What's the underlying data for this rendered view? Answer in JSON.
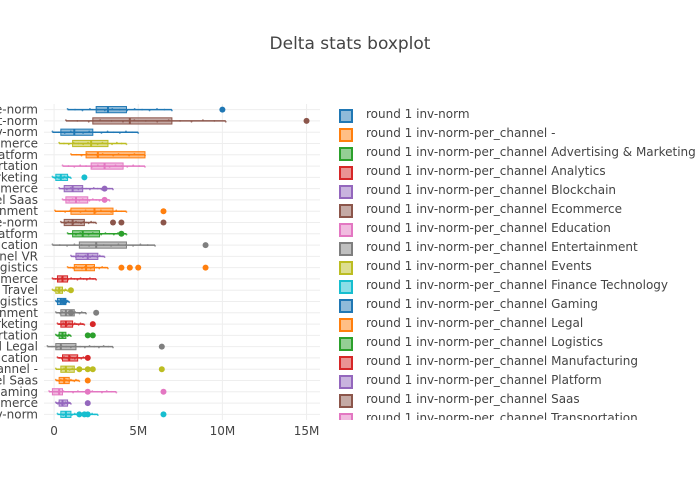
{
  "chart_data": {
    "type": "box",
    "orientation": "horizontal",
    "title": "Delta stats boxplot",
    "xlabel": "",
    "ylabel": "",
    "xlim": [
      -600000,
      15800000
    ],
    "xticks": [
      0,
      5000000,
      10000000,
      15000000
    ],
    "xtick_labels": [
      "0",
      "5M",
      "10M",
      "15M"
    ],
    "grid": true,
    "legend_position": "right",
    "categories": [
      "e-norm",
      "t-norm",
      "v-norm",
      "mmerce",
      "latform",
      "portation",
      "arketing",
      "mmerce",
      "el Saas",
      "inment",
      "e-norm",
      "latform",
      "ducation",
      "nnel VR",
      "ogistics",
      "mmerce",
      "l Travel",
      "ogistics",
      "inment",
      "arketing",
      "portation",
      "el Legal",
      "ducation",
      "hannel -",
      "el Saas",
      "Gaming",
      "mmerce",
      "v-norm"
    ],
    "series": [
      {
        "name": "round 1 inv-norm",
        "color": "#1f77b4"
      },
      {
        "name": "round 1 inv-norm-per_channel -",
        "color": "#ff7f0e"
      },
      {
        "name": "round 1 inv-norm-per_channel Advertising & Marketing",
        "color": "#2ca02c"
      },
      {
        "name": "round 1 inv-norm-per_channel Analytics",
        "color": "#d62728"
      },
      {
        "name": "round 1 inv-norm-per_channel Blockchain",
        "color": "#9467bd"
      },
      {
        "name": "round 1 inv-norm-per_channel Ecommerce",
        "color": "#8c564b"
      },
      {
        "name": "round 1 inv-norm-per_channel Education",
        "color": "#e377c2"
      },
      {
        "name": "round 1 inv-norm-per_channel Entertainment",
        "color": "#7f7f7f"
      },
      {
        "name": "round 1 inv-norm-per_channel Events",
        "color": "#bcbd22"
      },
      {
        "name": "round 1 inv-norm-per_channel Finance Technology",
        "color": "#17becf"
      },
      {
        "name": "round 1 inv-norm-per_channel Gaming",
        "color": "#1f77b4"
      },
      {
        "name": "round 1 inv-norm-per_channel Legal",
        "color": "#ff7f0e"
      },
      {
        "name": "round 1 inv-norm-per_channel Logistics",
        "color": "#2ca02c"
      },
      {
        "name": "round 1 inv-norm-per_channel Manufacturing",
        "color": "#d62728"
      },
      {
        "name": "round 1 inv-norm-per_channel Platform",
        "color": "#9467bd"
      },
      {
        "name": "round 1 inv-norm-per_channel Saas",
        "color": "#8c564b"
      },
      {
        "name": "round 1 inv-norm-per_channel Transportation",
        "color": "#e377c2"
      }
    ],
    "rows": [
      {
        "label": "e-norm",
        "color": "#1f77b4",
        "min": 800000,
        "q1": 2500000,
        "median": 3200000,
        "q3": 4300000,
        "max": 7000000,
        "outliers": [
          10000000
        ]
      },
      {
        "label": "t-norm",
        "color": "#8c564b",
        "min": 700000,
        "q1": 2300000,
        "median": 4500000,
        "q3": 7000000,
        "max": 10200000,
        "outliers": [
          15000000
        ]
      },
      {
        "label": "v-norm",
        "color": "#1f77b4",
        "min": -100000,
        "q1": 400000,
        "median": 1200000,
        "q3": 2300000,
        "max": 5000000,
        "outliers": []
      },
      {
        "label": "mmerce",
        "color": "#bcbd22",
        "min": 300000,
        "q1": 1100000,
        "median": 2200000,
        "q3": 3200000,
        "max": 4300000,
        "outliers": []
      },
      {
        "label": "latform",
        "color": "#ff7f0e",
        "min": 1000000,
        "q1": 1900000,
        "median": 2600000,
        "q3": 5400000,
        "max": 5400000,
        "outliers": []
      },
      {
        "label": "portation",
        "color": "#e377c2",
        "min": 500000,
        "q1": 2200000,
        "median": 3000000,
        "q3": 4100000,
        "max": 5400000,
        "outliers": []
      },
      {
        "label": "arketing",
        "color": "#17becf",
        "min": -100000,
        "q1": 100000,
        "median": 400000,
        "q3": 800000,
        "max": 1000000,
        "outliers": [
          1800000
        ]
      },
      {
        "label": "mmerce",
        "color": "#9467bd",
        "min": 300000,
        "q1": 600000,
        "median": 1100000,
        "q3": 1700000,
        "max": 3500000,
        "outliers": [
          3000000
        ]
      },
      {
        "label": "el Saas",
        "color": "#e377c2",
        "min": 500000,
        "q1": 700000,
        "median": 1300000,
        "q3": 2000000,
        "max": 3300000,
        "outliers": [
          3000000
        ]
      },
      {
        "label": "inment",
        "color": "#ff7f0e",
        "min": 50000,
        "q1": 1000000,
        "median": 2400000,
        "q3": 3500000,
        "max": 4300000,
        "outliers": [
          6500000
        ]
      },
      {
        "label": "e-norm",
        "color": "#8c564b",
        "min": 400000,
        "q1": 600000,
        "median": 1100000,
        "q3": 1800000,
        "max": 2500000,
        "outliers": [
          3500000,
          4000000,
          6500000
        ]
      },
      {
        "label": "latform",
        "color": "#2ca02c",
        "min": 800000,
        "q1": 1100000,
        "median": 1700000,
        "q3": 2700000,
        "max": 4300000,
        "outliers": [
          4000000
        ]
      },
      {
        "label": "ducation",
        "color": "#7f7f7f",
        "min": -100000,
        "q1": 1500000,
        "median": 2500000,
        "q3": 4300000,
        "max": 6000000,
        "outliers": [
          9000000
        ]
      },
      {
        "label": "nnel VR",
        "color": "#9467bd",
        "min": 1000000,
        "q1": 1300000,
        "median": 2000000,
        "q3": 2600000,
        "max": 3000000,
        "outliers": []
      },
      {
        "label": "ogistics",
        "color": "#ff7f0e",
        "min": 800000,
        "q1": 1200000,
        "median": 1900000,
        "q3": 2400000,
        "max": 3200000,
        "outliers": [
          4000000,
          4500000,
          5000000,
          9000000
        ]
      },
      {
        "label": "mmerce",
        "color": "#d62728",
        "min": -100000,
        "q1": 200000,
        "median": 500000,
        "q3": 800000,
        "max": 2500000,
        "outliers": []
      },
      {
        "label": "l Travel",
        "color": "#bcbd22",
        "min": -100000,
        "q1": 100000,
        "median": 300000,
        "q3": 500000,
        "max": 800000,
        "outliers": [
          1000000
        ]
      },
      {
        "label": "ogistics",
        "color": "#1f77b4",
        "min": 100000,
        "q1": 200000,
        "median": 400000,
        "q3": 700000,
        "max": 900000,
        "outliers": [
          600000
        ]
      },
      {
        "label": "inment",
        "color": "#7f7f7f",
        "min": 100000,
        "q1": 400000,
        "median": 700000,
        "q3": 1200000,
        "max": 1900000,
        "outliers": [
          1000000,
          2500000
        ]
      },
      {
        "label": "arketing",
        "color": "#d62728",
        "min": 200000,
        "q1": 400000,
        "median": 700000,
        "q3": 1100000,
        "max": 1800000,
        "outliers": [
          2300000
        ]
      },
      {
        "label": "portation",
        "color": "#2ca02c",
        "min": 100000,
        "q1": 300000,
        "median": 500000,
        "q3": 700000,
        "max": 1000000,
        "outliers": [
          2000000,
          2300000
        ]
      },
      {
        "label": "el Legal",
        "color": "#7f7f7f",
        "min": -400000,
        "q1": 100000,
        "median": 400000,
        "q3": 1300000,
        "max": 3500000,
        "outliers": [
          6400000
        ]
      },
      {
        "label": "ducation",
        "color": "#d62728",
        "min": 200000,
        "q1": 500000,
        "median": 900000,
        "q3": 1400000,
        "max": 2000000,
        "outliers": [
          2000000
        ]
      },
      {
        "label": "hannel -",
        "color": "#bcbd22",
        "min": 100000,
        "q1": 400000,
        "median": 700000,
        "q3": 1200000,
        "max": 2400000,
        "outliers": [
          1500000,
          2000000,
          2300000,
          6400000
        ]
      },
      {
        "label": "el Saas",
        "color": "#ff7f0e",
        "min": 100000,
        "q1": 300000,
        "median": 600000,
        "q3": 900000,
        "max": 1500000,
        "outliers": [
          2000000
        ]
      },
      {
        "label": "Gaming",
        "color": "#e377c2",
        "min": -300000,
        "q1": -100000,
        "median": 300000,
        "q3": 500000,
        "max": 3700000,
        "outliers": [
          2000000,
          6500000
        ]
      },
      {
        "label": "mmerce",
        "color": "#9467bd",
        "min": 100000,
        "q1": 300000,
        "median": 500000,
        "q3": 800000,
        "max": 1000000,
        "outliers": [
          2000000
        ]
      },
      {
        "label": "v-norm",
        "color": "#17becf",
        "min": 200000,
        "q1": 400000,
        "median": 700000,
        "q3": 1000000,
        "max": 2600000,
        "outliers": [
          1500000,
          1800000,
          2000000,
          6500000
        ]
      }
    ]
  }
}
